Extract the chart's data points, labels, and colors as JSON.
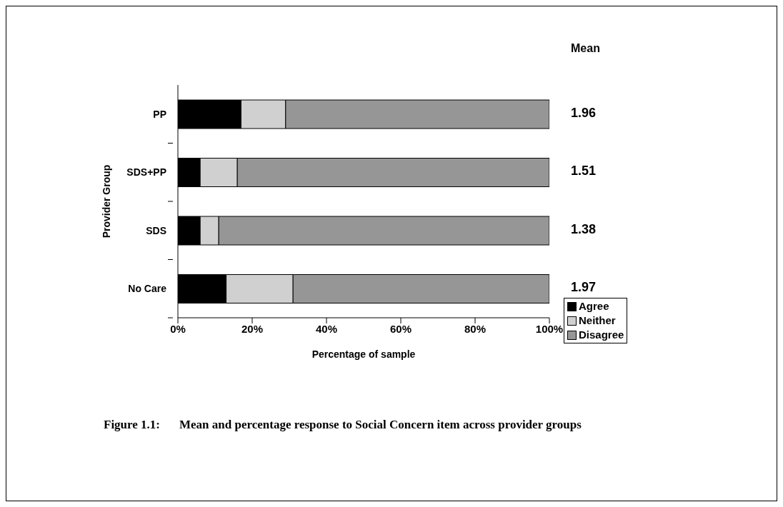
{
  "chart_data": {
    "type": "bar",
    "orientation": "horizontal",
    "stacked": true,
    "xlabel": "Percentage of sample",
    "ylabel": "Provider Group",
    "categories": [
      "PP",
      "SDS+PP",
      "SDS",
      "No Care"
    ],
    "series": [
      {
        "name": "Agree",
        "color": "#000000",
        "values": [
          17,
          6,
          6,
          13
        ]
      },
      {
        "name": "Neither",
        "color": "#d0d0d0",
        "values": [
          12,
          10,
          5,
          18
        ]
      },
      {
        "name": "Disagree",
        "color": "#969696",
        "values": [
          71,
          84,
          89,
          69
        ]
      }
    ],
    "xlim": [
      0,
      100
    ],
    "xticks": [
      {
        "value": 0,
        "label": "0%"
      },
      {
        "value": 20,
        "label": "20%"
      },
      {
        "value": 40,
        "label": "40%"
      },
      {
        "value": 60,
        "label": "60%"
      },
      {
        "value": 80,
        "label": "80%"
      },
      {
        "value": 100,
        "label": "100%"
      }
    ],
    "annotations": [
      "Mean",
      "1.96",
      "1.51",
      "1.38",
      "1.97",
      "Figure 1.1:\tMean and percentage response to Social Concern item across provider groups"
    ],
    "grid": false,
    "legend": "bottom right"
  }
}
